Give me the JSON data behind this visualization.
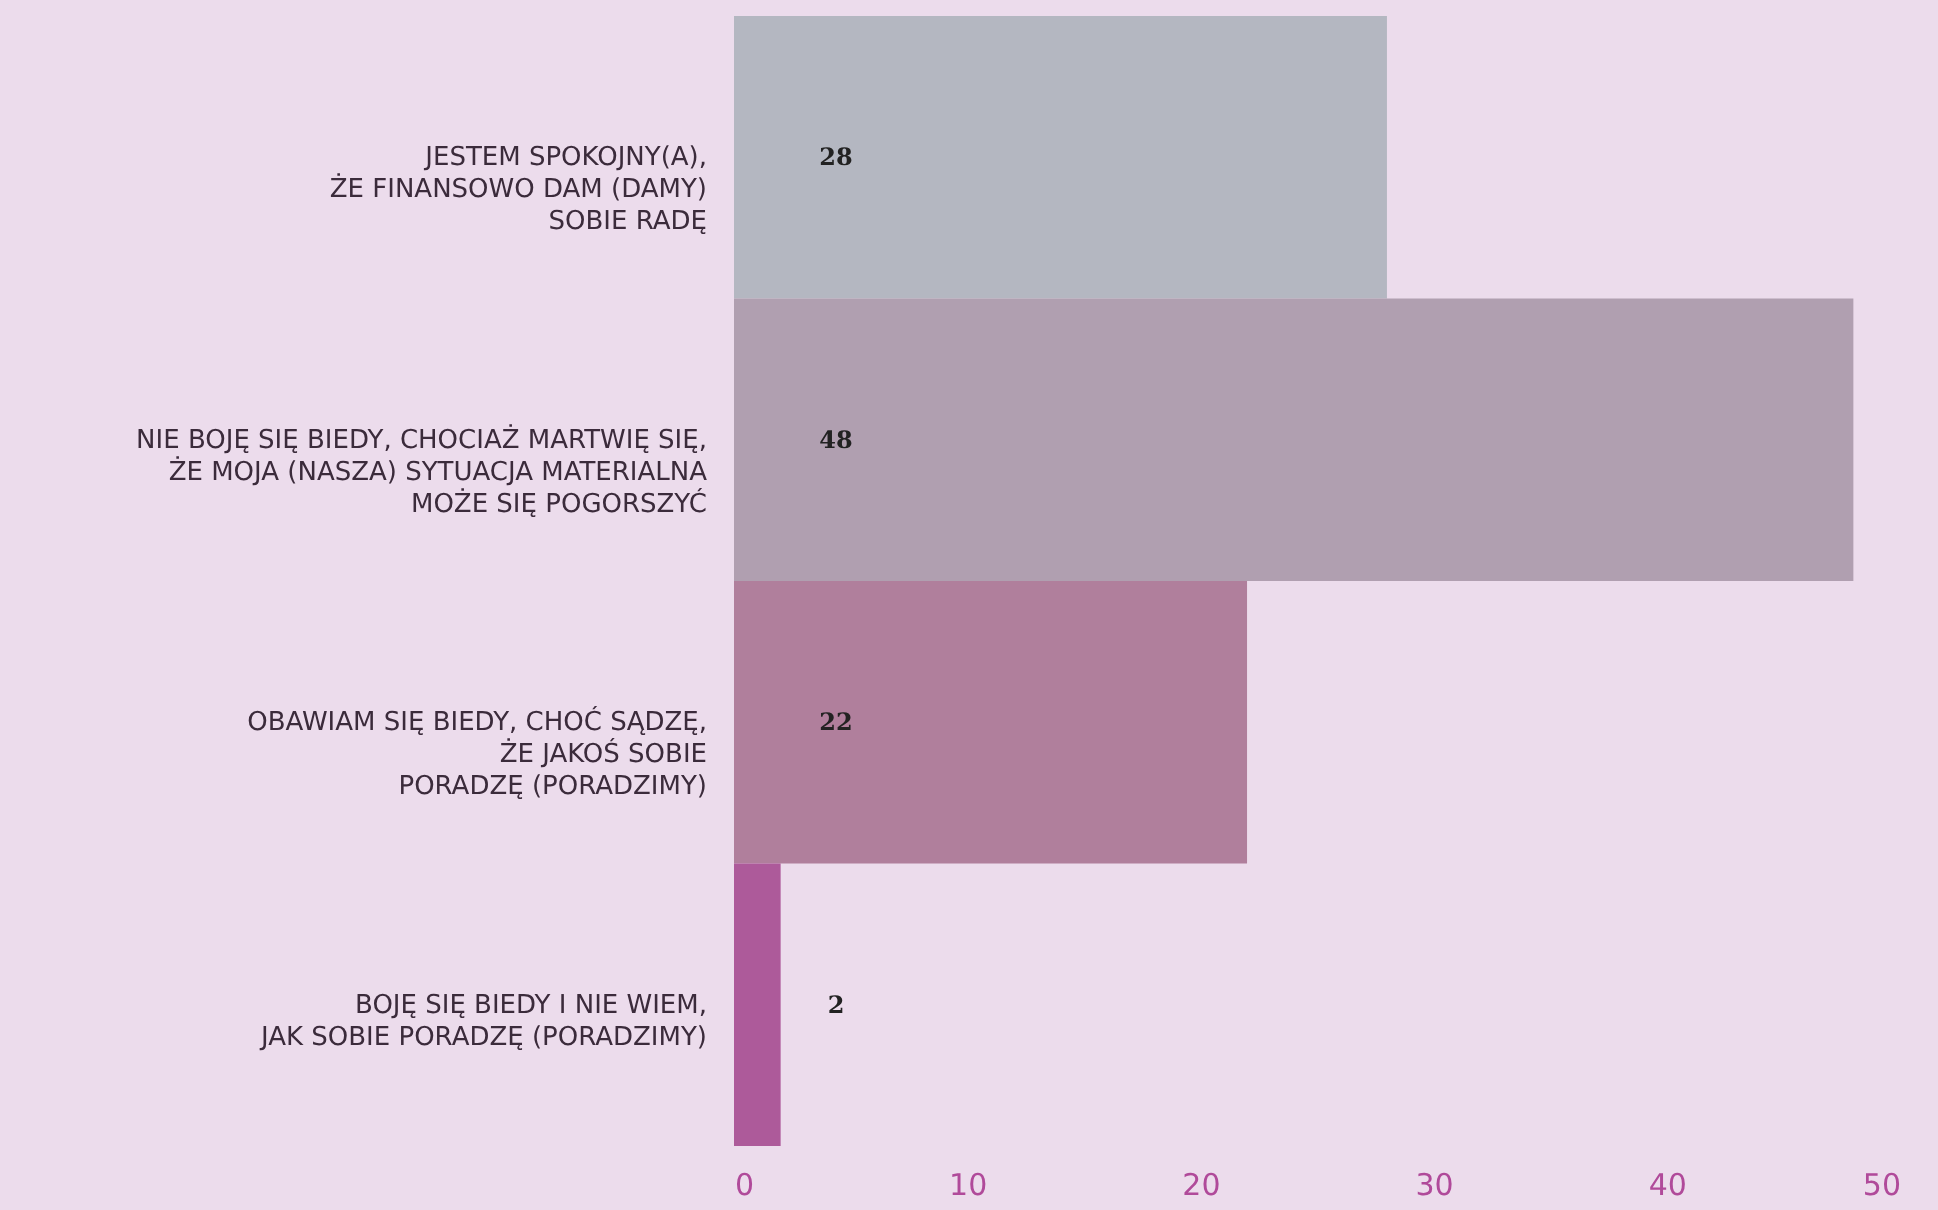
{
  "chart_data": {
    "type": "bar",
    "orientation": "horizontal",
    "categories": [
      "JESTEM SPOKOJNY(A),\nŻE FINANSOWO DAM (DAMY)\nSOBIE RADĘ",
      "NIE BOJĘ SIĘ BIEDY, CHOCIAŻ MARTWIĘ SIĘ,\nŻE MOJA (NASZA) SYTUACJA MATERIALNA\nMOŻE SIĘ POGORSZYĆ",
      "OBAWIAM SIĘ BIEDY, CHOĆ SĄDZĘ,\nŻE JAKOŚ SOBIE\nPORADZĘ (PORADZIMY)",
      "BOJĘ SIĘ BIEDY I NIE WIEM,\nJAK SOBIE PORADZĘ (PORADZIMY)"
    ],
    "values": [
      28,
      48,
      22,
      2
    ],
    "colors": [
      "#b4b7c1",
      "#b09fb0",
      "#b07f9c",
      "#ad5a9a"
    ],
    "xlim": [
      0,
      50
    ],
    "xticks": [
      0,
      10,
      20,
      30,
      40,
      50
    ],
    "data_labels": true
  }
}
